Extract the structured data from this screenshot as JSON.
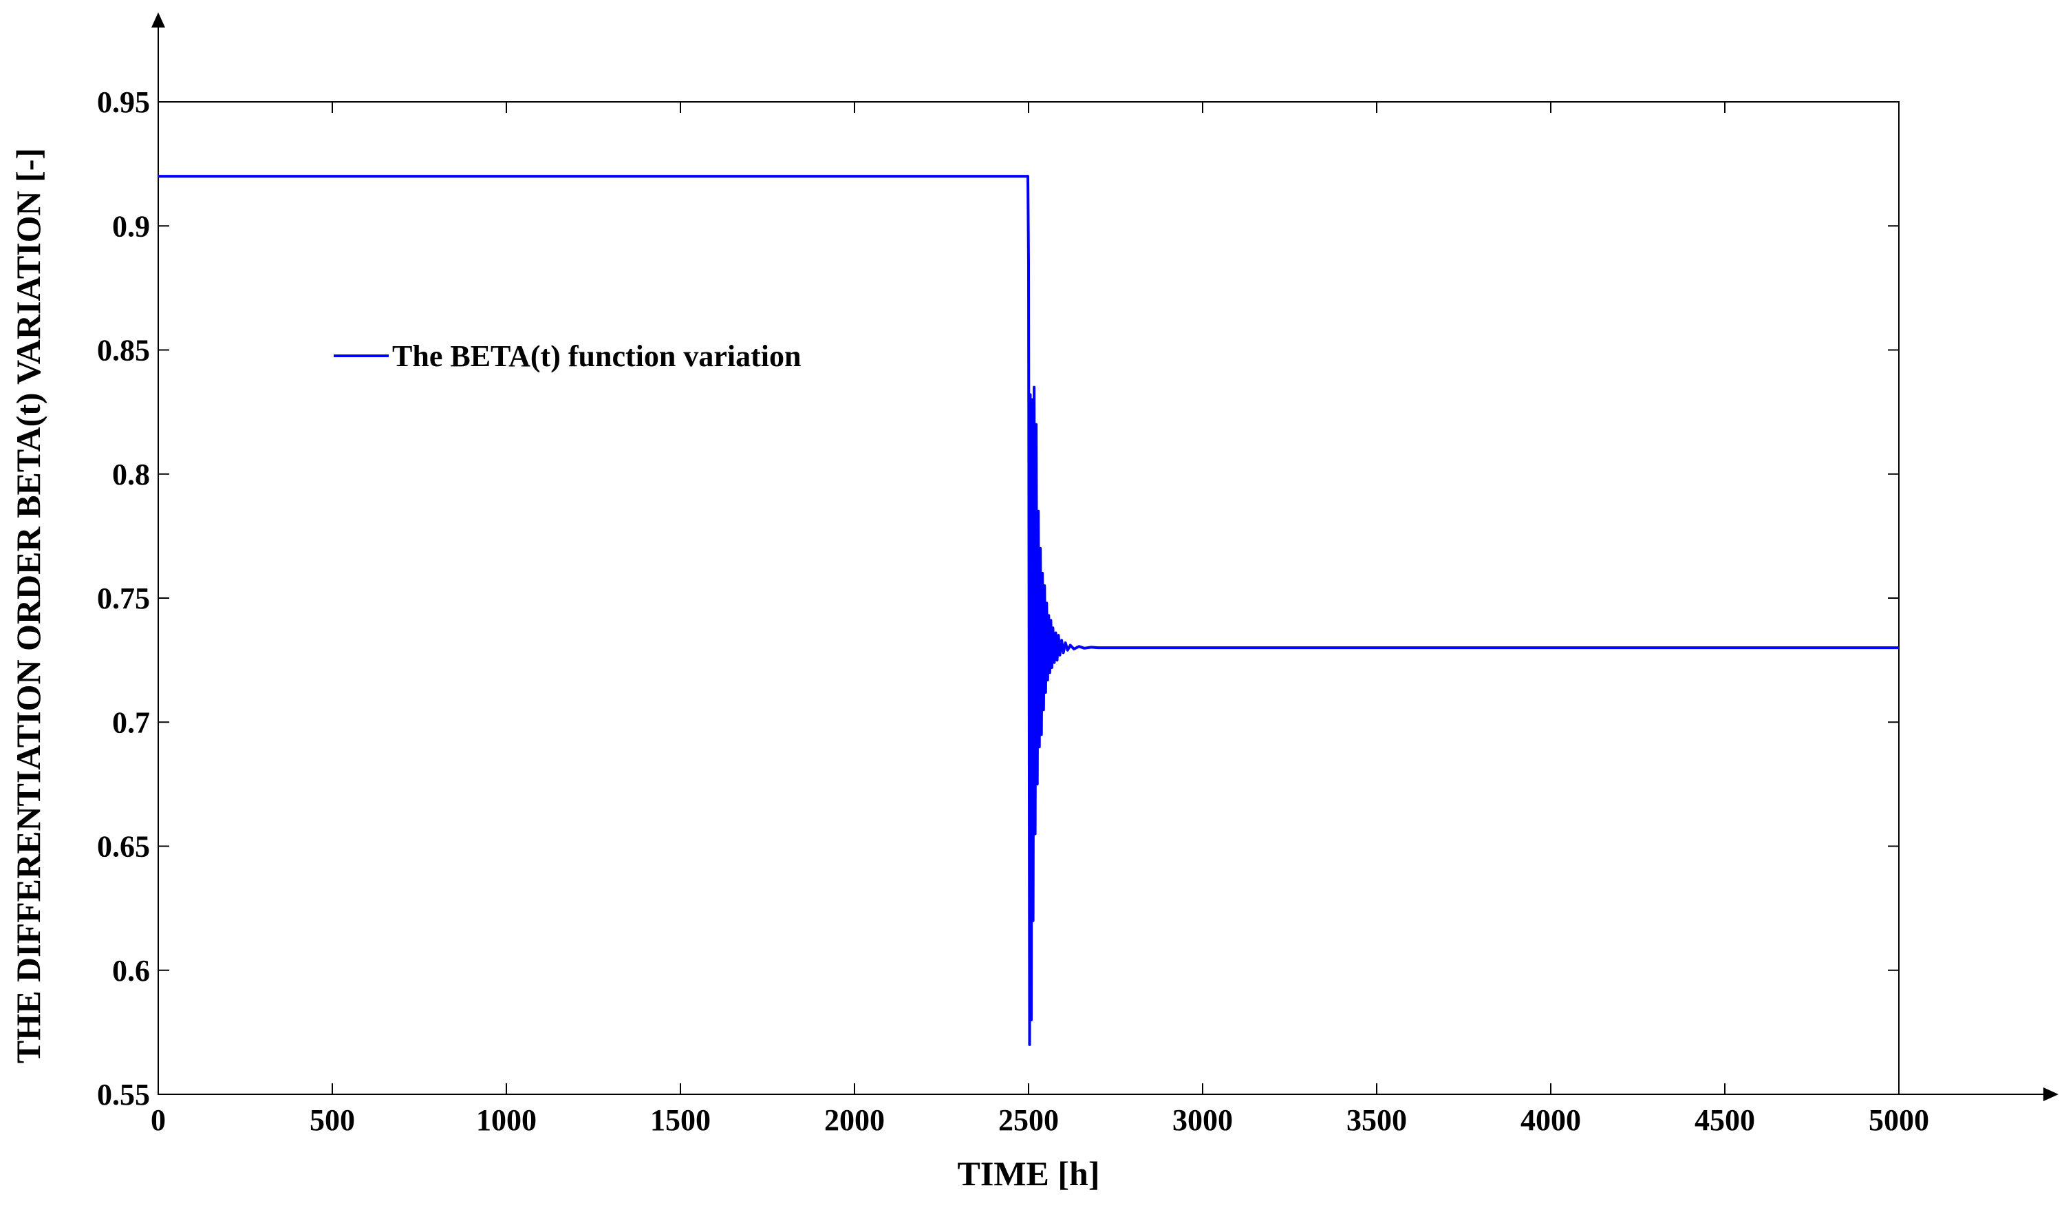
{
  "chart_data": {
    "type": "line",
    "xlabel": "TIME [h]",
    "ylabel": "THE DIFFERENTIATION ORDER BETA(t) VARIATION [-]",
    "xlim": [
      0,
      5000
    ],
    "ylim": [
      0.55,
      0.95
    ],
    "x_ticks": [
      0,
      500,
      1000,
      1500,
      2000,
      2500,
      3000,
      3500,
      4000,
      4500,
      5000
    ],
    "x_tick_labels": [
      "0",
      "500",
      "1000",
      "1500",
      "2000",
      "2500",
      "3000",
      "3500",
      "4000",
      "4500",
      "5000"
    ],
    "y_ticks": [
      0.55,
      0.6,
      0.65,
      0.7,
      0.75,
      0.8,
      0.85,
      0.9,
      0.95
    ],
    "y_tick_labels": [
      "0.55",
      "0.6",
      "0.65",
      "0.7",
      "0.75",
      "0.8",
      "0.85",
      "0.9",
      "0.95"
    ],
    "grid": false,
    "legend_position": "upper-left",
    "series": [
      {
        "name": "The BETA(t) function variation",
        "color": "#0000ff",
        "x": [
          0,
          2498,
          2500,
          2503,
          2505,
          2508,
          2510,
          2513,
          2516,
          2519,
          2522,
          2525,
          2528,
          2531,
          2534,
          2537,
          2540,
          2543,
          2546,
          2549,
          2552,
          2555,
          2558,
          2561,
          2564,
          2567,
          2570,
          2574,
          2578,
          2582,
          2586,
          2590,
          2595,
          2600,
          2606,
          2612,
          2620,
          2630,
          2645,
          2660,
          2680,
          2700,
          2750,
          5000
        ],
        "y": [
          0.92,
          0.92,
          0.885,
          0.57,
          0.832,
          0.58,
          0.83,
          0.62,
          0.835,
          0.655,
          0.82,
          0.675,
          0.785,
          0.69,
          0.77,
          0.695,
          0.76,
          0.705,
          0.755,
          0.712,
          0.748,
          0.717,
          0.743,
          0.72,
          0.741,
          0.722,
          0.738,
          0.724,
          0.736,
          0.725,
          0.735,
          0.727,
          0.733,
          0.728,
          0.732,
          0.729,
          0.731,
          0.7295,
          0.7305,
          0.7298,
          0.7302,
          0.73,
          0.73,
          0.73
        ]
      }
    ]
  }
}
